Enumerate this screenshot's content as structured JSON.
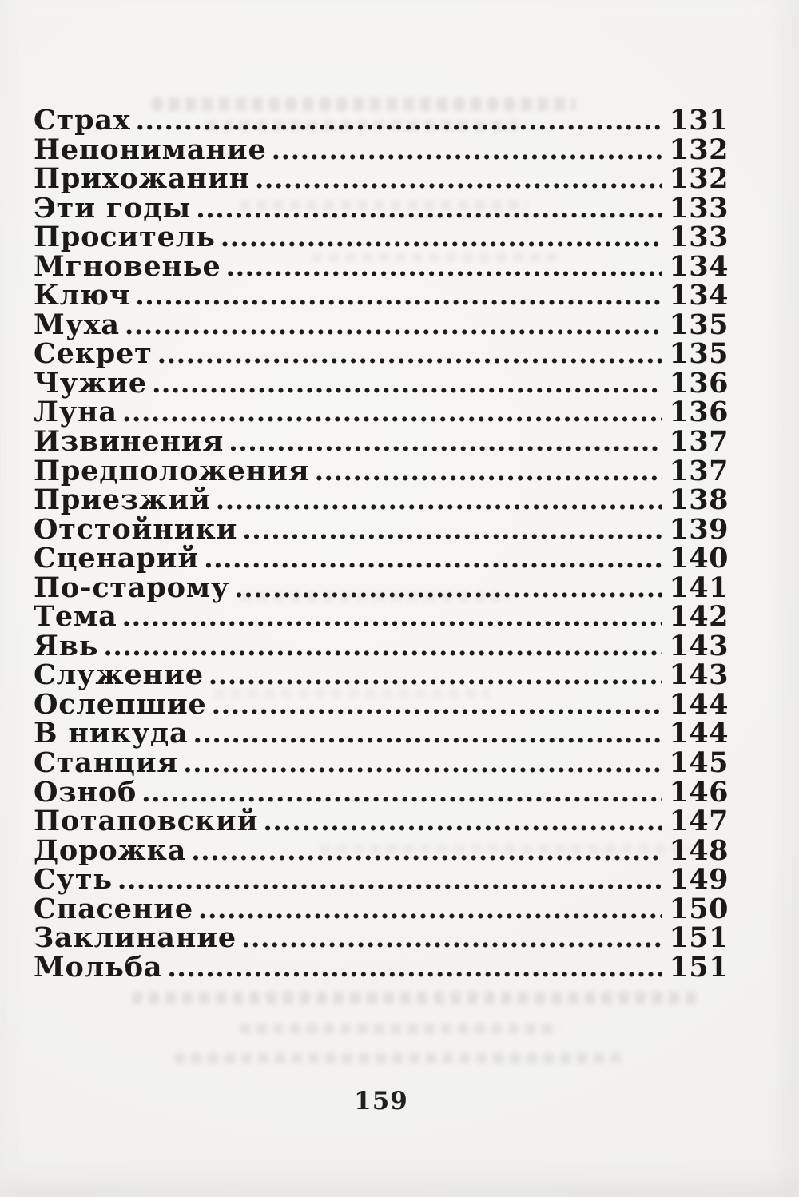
{
  "toc": {
    "entries": [
      {
        "title": "Страх",
        "page": "131"
      },
      {
        "title": "Непонимание",
        "page": "132"
      },
      {
        "title": "Прихожанин",
        "page": "132"
      },
      {
        "title": "Эти годы",
        "page": "133"
      },
      {
        "title": "Проситель",
        "page": "133"
      },
      {
        "title": "Мгновенье",
        "page": "134"
      },
      {
        "title": "Ключ",
        "page": "134"
      },
      {
        "title": "Муха",
        "page": "135"
      },
      {
        "title": "Секрет",
        "page": "135"
      },
      {
        "title": "Чужие",
        "page": "136"
      },
      {
        "title": "Луна",
        "page": "136"
      },
      {
        "title": "Извинения",
        "page": "137"
      },
      {
        "title": "Предположения",
        "page": "137"
      },
      {
        "title": "Приезжий",
        "page": "138"
      },
      {
        "title": "Отстойники",
        "page": "139"
      },
      {
        "title": "Сценарий",
        "page": "140"
      },
      {
        "title": "По-старому",
        "page": "141"
      },
      {
        "title": "Тема",
        "page": "142"
      },
      {
        "title": "Явь",
        "page": "143"
      },
      {
        "title": "Служение",
        "page": "143"
      },
      {
        "title": "Ослепшие",
        "page": "144"
      },
      {
        "title": "В никуда",
        "page": "144"
      },
      {
        "title": "Станция",
        "page": "145"
      },
      {
        "title": "Озноб",
        "page": "146"
      },
      {
        "title": "Потаповский",
        "page": "147"
      },
      {
        "title": "Дорожка",
        "page": "148"
      },
      {
        "title": "Суть",
        "page": "149"
      },
      {
        "title": "Спасение",
        "page": "150"
      },
      {
        "title": "Заклинание",
        "page": "151"
      },
      {
        "title": "Мольба",
        "page": "151"
      }
    ]
  },
  "page_number": "159",
  "colors": {
    "paper": "#f3f2ef",
    "ink": "#1b1a18"
  }
}
